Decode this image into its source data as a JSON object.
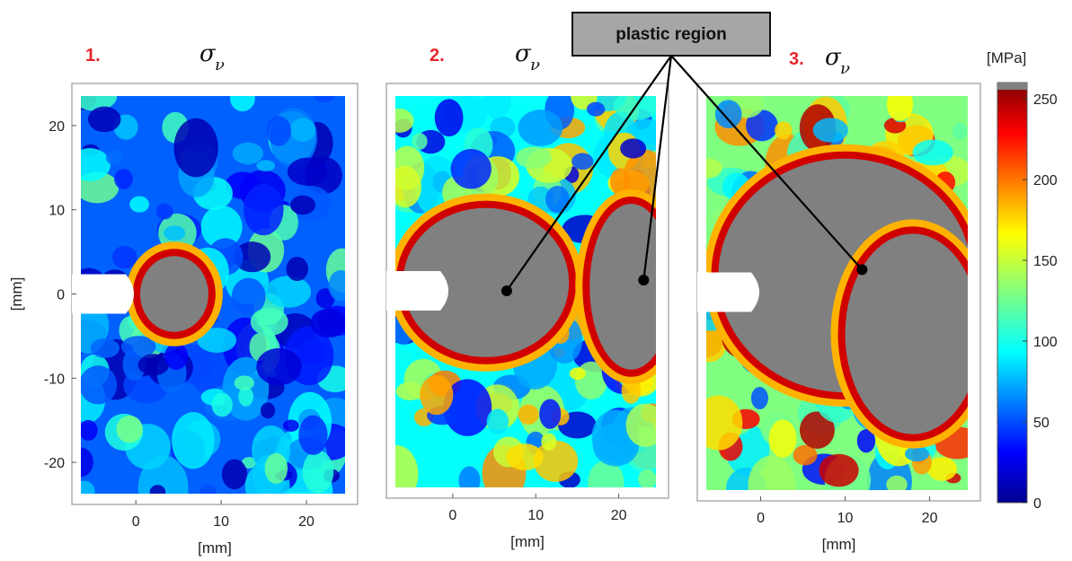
{
  "chart_data": [
    {
      "type": "heatmap",
      "panel_number": "1.",
      "title_symbol": "σ",
      "title_subscript": "ν",
      "xlabel": "[mm]",
      "ylabel": "[mm]",
      "xticks": [
        0,
        10,
        20
      ],
      "yticks": [
        20,
        10,
        0,
        -10,
        -20
      ],
      "xlim": [
        -7.5,
        26
      ],
      "ylim": [
        -25,
        25
      ],
      "notch_at_y": 0,
      "plastic_regions": [
        {
          "x": 4.5,
          "y": 0,
          "rx": 4,
          "ry": 4.5
        }
      ]
    },
    {
      "type": "heatmap",
      "panel_number": "2.",
      "title_symbol": "σ",
      "title_subscript": "ν",
      "xlabel": "[mm]",
      "ylabel": "",
      "xticks": [
        0,
        10,
        20
      ],
      "yticks": [],
      "xlim": [
        -8,
        26
      ],
      "ylim": [
        -25,
        25
      ],
      "notch_at_y": 0,
      "plastic_regions": [
        {
          "x": 4,
          "y": 1,
          "rx": 10,
          "ry": 9
        },
        {
          "x": 21.5,
          "y": 0.5,
          "rx": 5,
          "ry": 10
        }
      ]
    },
    {
      "type": "heatmap",
      "panel_number": "3.",
      "title_symbol": "σ",
      "title_subscript": "ν",
      "xlabel": "[mm]",
      "ylabel": "",
      "xticks": [
        0,
        10,
        20
      ],
      "yticks": [],
      "xlim": [
        -7.5,
        26
      ],
      "ylim": [
        -25,
        25
      ],
      "notch_at_y": 0,
      "plastic_regions": [
        {
          "x": 10,
          "y": 2,
          "rx": 15,
          "ry": 14
        },
        {
          "x": 18,
          "y": -5,
          "rx": 8,
          "ry": 12
        }
      ]
    }
  ],
  "colorbar": {
    "unit_label": "[MPa]",
    "ticks": [
      0,
      50,
      100,
      150,
      200,
      250
    ],
    "range": [
      0,
      260
    ],
    "colormap": "jet",
    "overflow_color": "#808080"
  },
  "annotation": {
    "text": "plastic region",
    "fill": "#a6a6a6",
    "targets": [
      {
        "panel": 1,
        "x": 6.5,
        "y": 0
      },
      {
        "panel": 1,
        "x": 23,
        "y": 1.3
      },
      {
        "panel": 2,
        "x": 12,
        "y": 2.7
      }
    ]
  },
  "colors": {
    "plastic": "#808080",
    "panel_number": "#e8262b",
    "frame": "#9a9a9a"
  }
}
